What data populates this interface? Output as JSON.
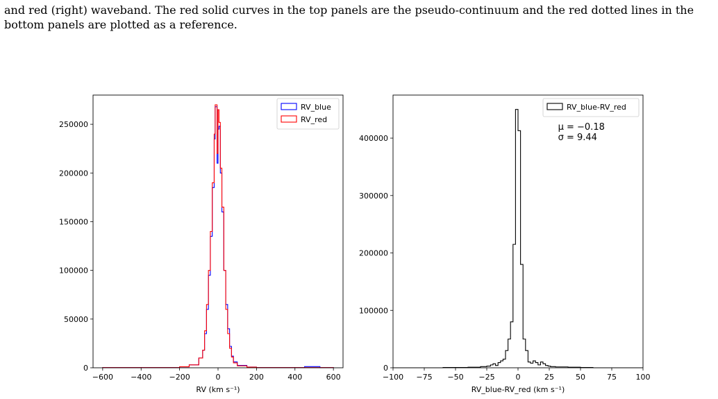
{
  "caption": {
    "line1": "and red (right) waveband.  The red solid curves in the top panels are the pseudo-continuum and the red dotted lines in the",
    "line2": "bottom panels are plotted as a reference."
  },
  "chart_data": [
    {
      "type": "histogram",
      "xlabel": "RV (km s⁻¹)",
      "ylabel": "",
      "xlim": [
        -650,
        650
      ],
      "ylim": [
        0,
        280000
      ],
      "xticks": [
        -600,
        -400,
        -200,
        0,
        200,
        400,
        600
      ],
      "xtick_labels": [
        "−600",
        "−400",
        "−200",
        "0",
        "200",
        "400",
        "600"
      ],
      "yticks": [
        0,
        50000,
        100000,
        150000,
        200000,
        250000
      ],
      "ytick_labels": [
        "0",
        "50000",
        "100000",
        "150000",
        "200000",
        "250000"
      ],
      "legend": "top-right",
      "series": [
        {
          "name": "RV_blue",
          "color": "#0000ff",
          "bins": [
            [
              -600,
              200
            ],
            [
              -200,
              1000
            ],
            [
              -150,
              3000
            ],
            [
              -100,
              10000
            ],
            [
              -80,
              18000
            ],
            [
              -70,
              35000
            ],
            [
              -60,
              60000
            ],
            [
              -50,
              95000
            ],
            [
              -40,
              135000
            ],
            [
              -30,
              185000
            ],
            [
              -20,
              235000
            ],
            [
              -15,
              268000
            ],
            [
              -5,
              210000
            ],
            [
              0,
              245000
            ],
            [
              5,
              248000
            ],
            [
              12,
              200000
            ],
            [
              20,
              160000
            ],
            [
              30,
              100000
            ],
            [
              40,
              65000
            ],
            [
              50,
              40000
            ],
            [
              60,
              22000
            ],
            [
              70,
              12000
            ],
            [
              80,
              6000
            ],
            [
              100,
              2500
            ],
            [
              150,
              800
            ],
            [
              200,
              200
            ],
            [
              450,
              1200
            ],
            [
              530,
              200
            ],
            [
              600,
              0
            ]
          ]
        },
        {
          "name": "RV_red",
          "color": "#ff0000",
          "bins": [
            [
              -600,
              200
            ],
            [
              -200,
              1000
            ],
            [
              -150,
              3000
            ],
            [
              -100,
              10000
            ],
            [
              -80,
              18000
            ],
            [
              -70,
              38000
            ],
            [
              -60,
              65000
            ],
            [
              -50,
              100000
            ],
            [
              -40,
              140000
            ],
            [
              -30,
              190000
            ],
            [
              -20,
              240000
            ],
            [
              -15,
              270000
            ],
            [
              -5,
              220000
            ],
            [
              0,
              265000
            ],
            [
              5,
              252000
            ],
            [
              12,
              205000
            ],
            [
              20,
              165000
            ],
            [
              30,
              100000
            ],
            [
              40,
              60000
            ],
            [
              50,
              35000
            ],
            [
              60,
              20000
            ],
            [
              70,
              11000
            ],
            [
              80,
              5000
            ],
            [
              100,
              2000
            ],
            [
              150,
              700
            ],
            [
              200,
              200
            ],
            [
              600,
              0
            ]
          ]
        }
      ]
    },
    {
      "type": "histogram",
      "xlabel": "RV_blue-RV_red (km s⁻¹)",
      "ylabel": "",
      "xlim": [
        -100,
        100
      ],
      "ylim": [
        0,
        475000
      ],
      "xticks": [
        -100,
        -75,
        -50,
        -25,
        0,
        25,
        50,
        75,
        100
      ],
      "xtick_labels": [
        "−100",
        "−75",
        "−50",
        "−25",
        "0",
        "25",
        "50",
        "75",
        "100"
      ],
      "yticks": [
        0,
        100000,
        200000,
        300000,
        400000
      ],
      "ytick_labels": [
        "0",
        "100000",
        "200000",
        "300000",
        "400000"
      ],
      "legend": "top-right",
      "annotation": {
        "mu": "μ = −0.18",
        "sigma": "σ = 9.44"
      },
      "series": [
        {
          "name": "RV_blue-RV_red",
          "color": "#000000",
          "bins": [
            [
              -100,
              0
            ],
            [
              -60,
              500
            ],
            [
              -40,
              1000
            ],
            [
              -30,
              2000
            ],
            [
              -25,
              3000
            ],
            [
              -22,
              5000
            ],
            [
              -20,
              7000
            ],
            [
              -18,
              4000
            ],
            [
              -16,
              9000
            ],
            [
              -14,
              12000
            ],
            [
              -12,
              15000
            ],
            [
              -10,
              30000
            ],
            [
              -8,
              50000
            ],
            [
              -6,
              80000
            ],
            [
              -4,
              215000
            ],
            [
              -2,
              450000
            ],
            [
              0,
              413000
            ],
            [
              2,
              180000
            ],
            [
              4,
              50000
            ],
            [
              6,
              30000
            ],
            [
              8,
              10000
            ],
            [
              10,
              8000
            ],
            [
              12,
              12000
            ],
            [
              14,
              9000
            ],
            [
              16,
              5000
            ],
            [
              18,
              10000
            ],
            [
              20,
              7000
            ],
            [
              22,
              4000
            ],
            [
              24,
              3000
            ],
            [
              26,
              2000
            ],
            [
              30,
              1500
            ],
            [
              40,
              1000
            ],
            [
              50,
              500
            ],
            [
              60,
              0
            ],
            [
              100,
              0
            ]
          ]
        }
      ]
    }
  ]
}
